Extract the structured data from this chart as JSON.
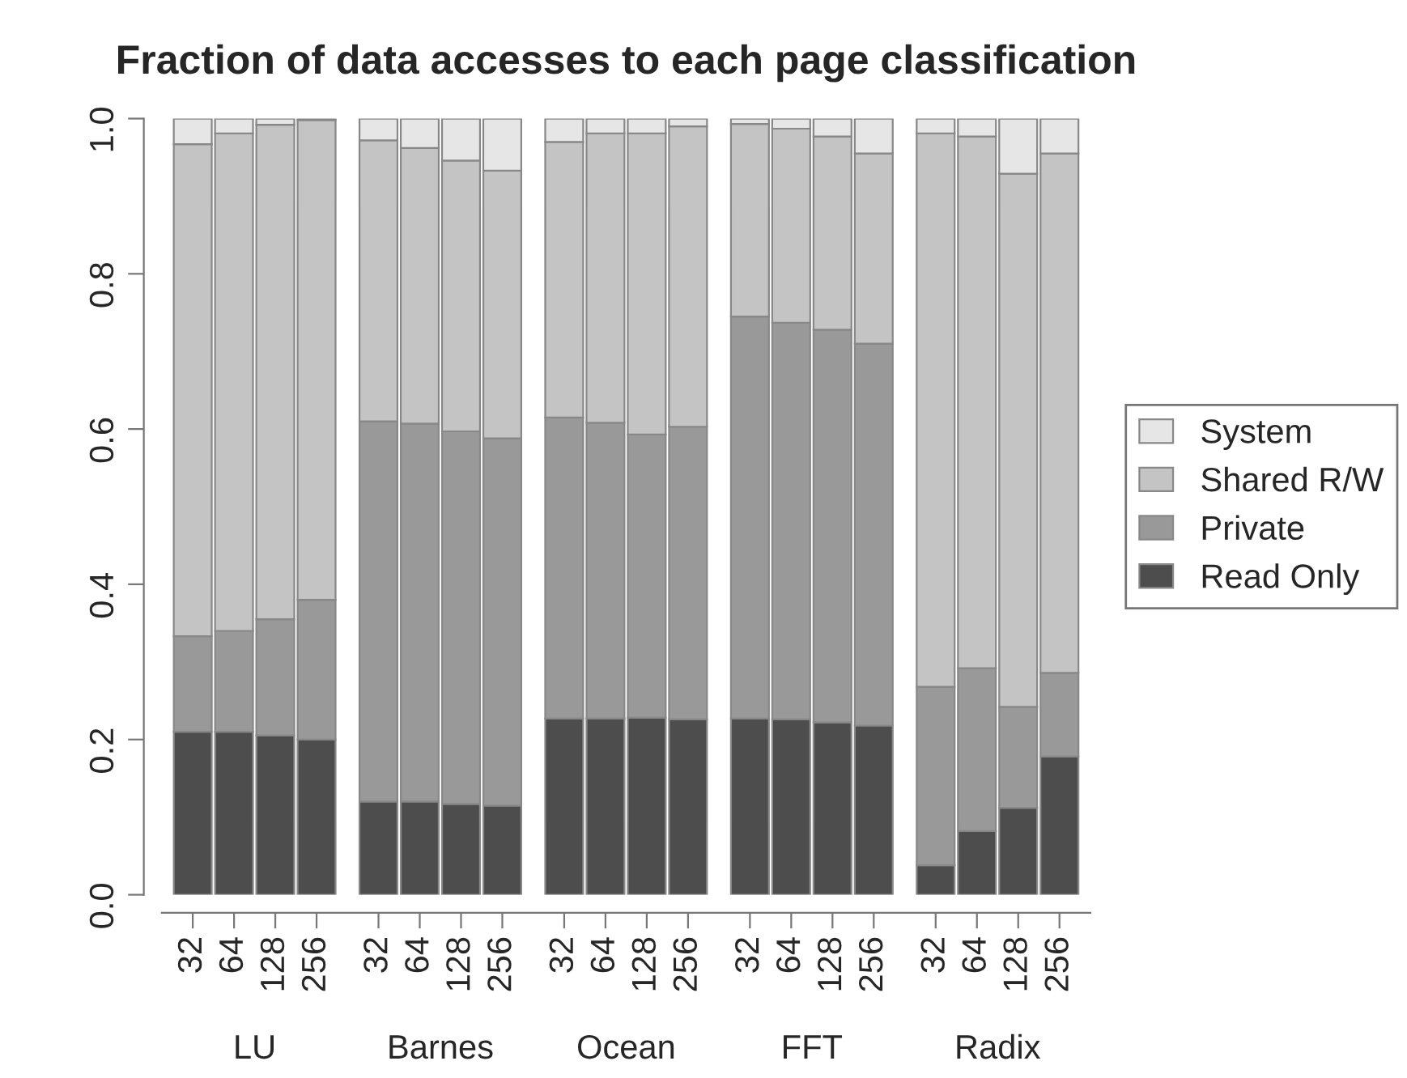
{
  "chart_data": {
    "type": "bar",
    "title": "Fraction of data accesses to each page classification",
    "categories": [
      "32",
      "64",
      "128",
      "256",
      "32",
      "64",
      "128",
      "256",
      "32",
      "64",
      "128",
      "256",
      "32",
      "64",
      "128",
      "256",
      "32",
      "64",
      "128",
      "256"
    ],
    "annotations": [
      "LU",
      "Barnes",
      "Ocean",
      "FFT",
      "Radix"
    ],
    "stacked": true,
    "series": [
      {
        "name": "Read Only",
        "color": "#4d4d4d",
        "values": [
          0.21,
          0.21,
          0.205,
          0.2,
          0.12,
          0.12,
          0.117,
          0.115,
          0.227,
          0.227,
          0.228,
          0.226,
          0.227,
          0.226,
          0.222,
          0.218,
          0.038,
          0.082,
          0.112,
          0.178
        ]
      },
      {
        "name": "Private",
        "color": "#999999",
        "values": [
          0.123,
          0.13,
          0.15,
          0.18,
          0.49,
          0.487,
          0.48,
          0.473,
          0.388,
          0.381,
          0.365,
          0.377,
          0.518,
          0.511,
          0.506,
          0.492,
          0.23,
          0.21,
          0.13,
          0.108
        ]
      },
      {
        "name": "Shared R/W",
        "color": "#c4c4c4",
        "values": [
          0.634,
          0.641,
          0.637,
          0.618,
          0.362,
          0.355,
          0.349,
          0.345,
          0.355,
          0.373,
          0.388,
          0.387,
          0.248,
          0.25,
          0.249,
          0.245,
          0.713,
          0.685,
          0.687,
          0.669
        ]
      },
      {
        "name": "System",
        "color": "#e6e6e6",
        "values": [
          0.033,
          0.019,
          0.008,
          0.002,
          0.028,
          0.038,
          0.054,
          0.067,
          0.03,
          0.019,
          0.019,
          0.01,
          0.007,
          0.013,
          0.023,
          0.045,
          0.019,
          0.023,
          0.071,
          0.045
        ]
      }
    ],
    "ylim": [
      0,
      1.0
    ],
    "yticks": [
      {
        "value": 0,
        "label": "0.0"
      },
      {
        "value": 0.2,
        "label": "0.2"
      },
      {
        "value": 0.4,
        "label": "0.4"
      },
      {
        "value": 0.6,
        "label": "0.6"
      },
      {
        "value": 0.8,
        "label": "0.8"
      },
      {
        "value": 1.0,
        "label": "1.0"
      }
    ],
    "legend": "right",
    "grid": false
  }
}
